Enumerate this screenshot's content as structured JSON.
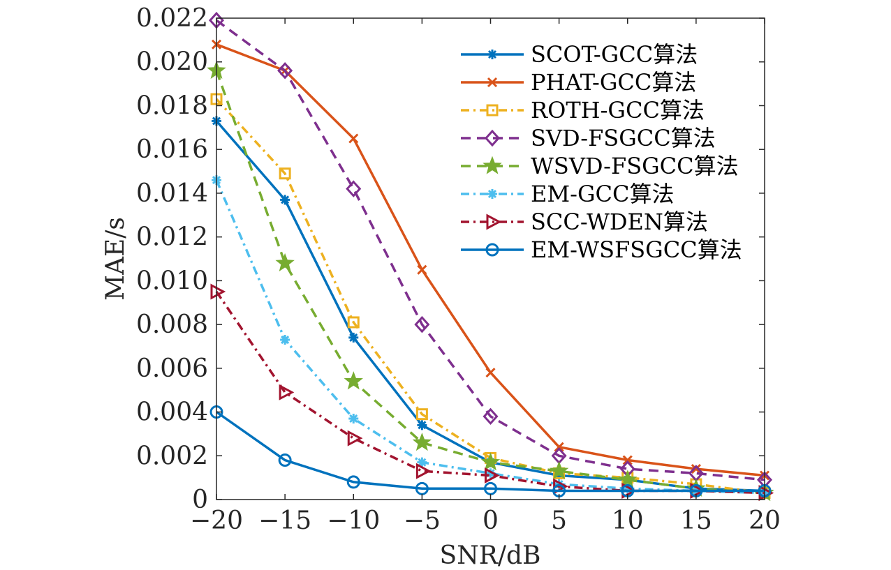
{
  "chart_data": {
    "type": "line",
    "title": "",
    "xlabel": "SNR/dB",
    "ylabel": "MAE/s",
    "xlim": [
      -20,
      20
    ],
    "ylim": [
      0,
      0.022
    ],
    "x": [
      -20,
      -15,
      -10,
      -5,
      0,
      5,
      10,
      15,
      20
    ],
    "x_ticks": [
      -20,
      -15,
      -10,
      -5,
      0,
      5,
      10,
      15,
      20
    ],
    "x_tick_labels": [
      "−20",
      "−15",
      "−10",
      "−5",
      "0",
      "5",
      "10",
      "15",
      "20"
    ],
    "y_ticks": [
      0,
      0.002,
      0.004,
      0.006,
      0.008,
      0.01,
      0.012,
      0.014,
      0.016,
      0.018,
      0.02,
      0.022
    ],
    "y_tick_labels": [
      "0",
      "0.002",
      "0.004",
      "0.006",
      "0.008",
      "0.010",
      "0.012",
      "0.014",
      "0.016",
      "0.018",
      "0.020",
      "0.022"
    ],
    "grid": false,
    "legend_position": "top-right",
    "series": [
      {
        "name": "SCOT-GCC算法",
        "color": "#0072BD",
        "dash": "solid",
        "marker": "asterisk",
        "values": [
          0.0173,
          0.0137,
          0.0074,
          0.0034,
          0.0017,
          0.0011,
          0.0009,
          0.0005,
          0.0004
        ]
      },
      {
        "name": "PHAT-GCC算法",
        "color": "#D95319",
        "dash": "solid",
        "marker": "x",
        "values": [
          0.0208,
          0.0196,
          0.0165,
          0.0105,
          0.0058,
          0.0024,
          0.0018,
          0.0014,
          0.0011
        ]
      },
      {
        "name": "ROTH-GCC算法",
        "color": "#EDB120",
        "dash": "dashdot",
        "marker": "square",
        "values": [
          0.0183,
          0.0149,
          0.0081,
          0.0039,
          0.0019,
          0.0012,
          0.001,
          0.0007,
          0.0003
        ]
      },
      {
        "name": "SVD-FSGCC算法",
        "color": "#7E2F8E",
        "dash": "dashed",
        "marker": "diamond",
        "values": [
          0.0219,
          0.0196,
          0.0142,
          0.008,
          0.0038,
          0.002,
          0.0014,
          0.0012,
          0.0009
        ]
      },
      {
        "name": "WSVD-FSGCC算法",
        "color": "#77AC30",
        "dash": "dashed",
        "marker": "star",
        "values": [
          0.0196,
          0.0108,
          0.0054,
          0.0026,
          0.0017,
          0.0013,
          0.0009,
          0.0005,
          0.0003
        ]
      },
      {
        "name": "EM-GCC算法",
        "color": "#4DBEEE",
        "dash": "dashdot",
        "marker": "asterisk",
        "values": [
          0.0146,
          0.0073,
          0.0037,
          0.0017,
          0.0012,
          0.0007,
          0.0005,
          0.0004,
          0.0003
        ]
      },
      {
        "name": "SCC-WDEN算法",
        "color": "#A2142F",
        "dash": "dashdot",
        "marker": "triangle-right",
        "values": [
          0.0095,
          0.0049,
          0.0028,
          0.0013,
          0.0011,
          0.0006,
          0.0004,
          0.0004,
          0.0003
        ]
      },
      {
        "name": "EM-WSFSGCC算法",
        "color": "#0072BD",
        "dash": "solid",
        "marker": "circle",
        "values": [
          0.004,
          0.0018,
          0.0008,
          0.0005,
          0.0005,
          0.0004,
          0.0004,
          0.0004,
          0.0004
        ]
      }
    ]
  }
}
